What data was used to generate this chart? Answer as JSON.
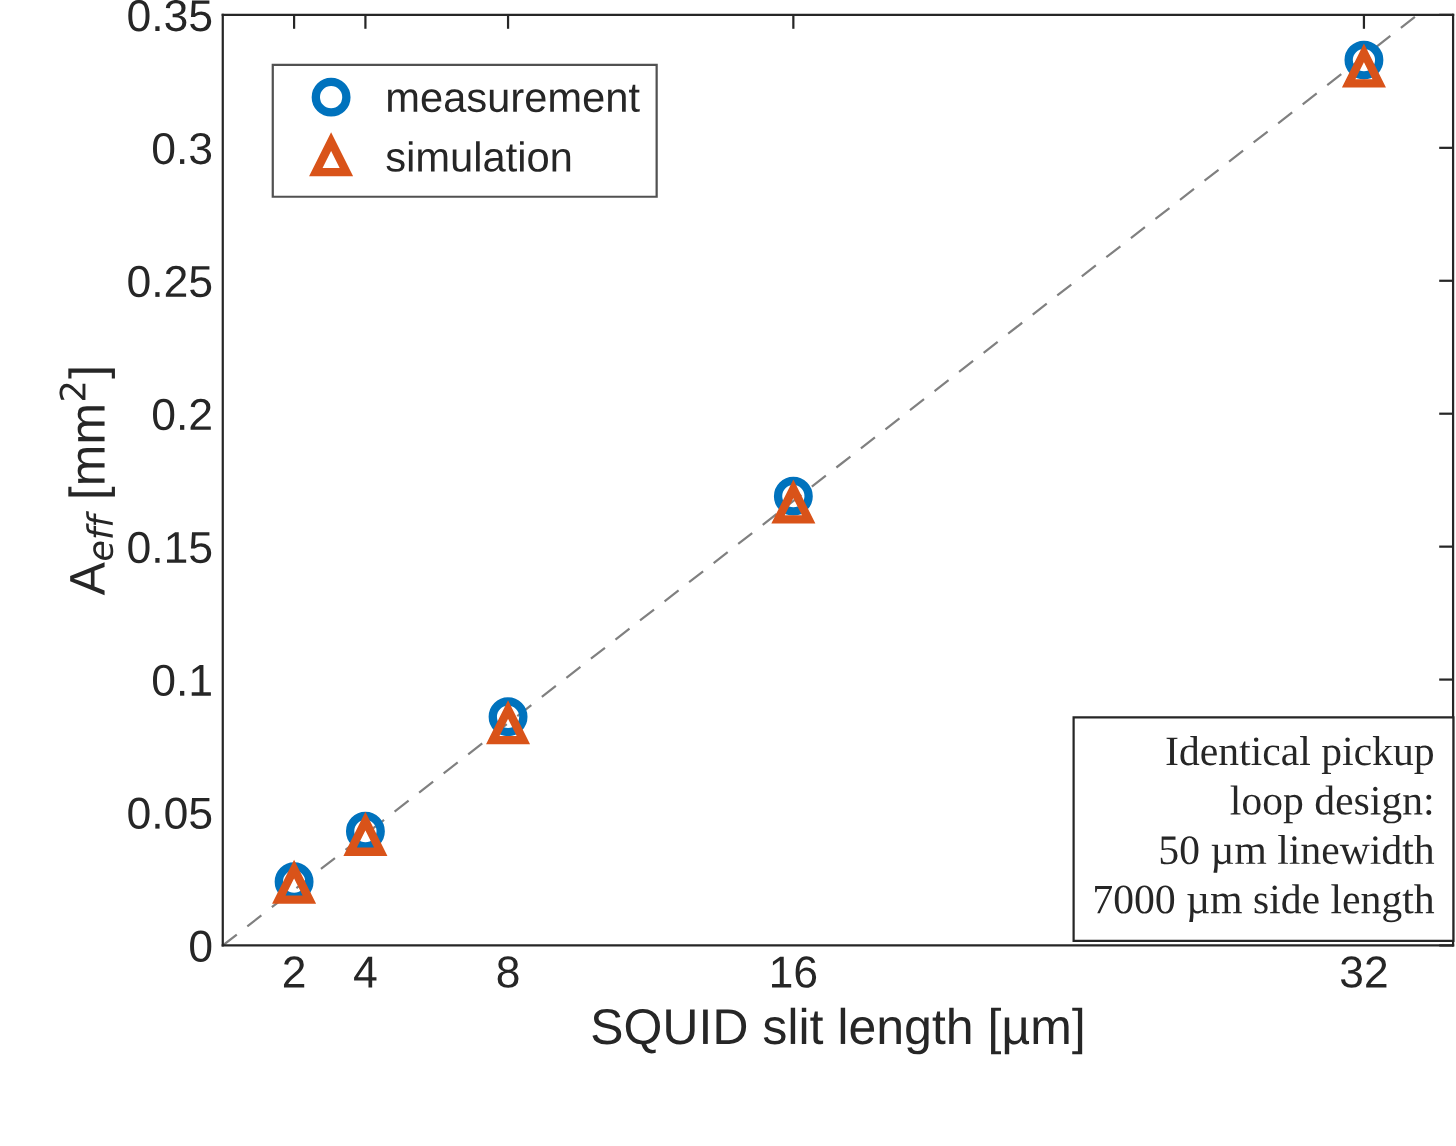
{
  "chart_data": {
    "type": "scatter",
    "xlabel": "SQUID slit length [µm]",
    "ylabel": "A$_{eff}$ [mm$^{2}$]",
    "xlim": [
      0,
      34.5
    ],
    "xticks": [
      2,
      4,
      8,
      16,
      32
    ],
    "ylim": [
      0,
      0.35
    ],
    "yticks": [
      0,
      0.05,
      0.1,
      0.15,
      0.2,
      0.25,
      0.3,
      0.35
    ],
    "x": [
      2,
      4,
      8,
      16,
      32
    ],
    "legend": "top left",
    "grid": false,
    "series": [
      {
        "type": "line",
        "x": [
          0,
          33.5
        ],
        "values": [
          0,
          0.35
        ],
        "color": "#808080",
        "line_style": "dashed",
        "marker": "none"
      },
      {
        "name": "measurement",
        "color": "#0072bd",
        "marker": "circle",
        "values": [
          0.024,
          0.043,
          0.086,
          0.169,
          0.333
        ]
      },
      {
        "name": "simulation",
        "color": "#d95319",
        "marker": "triangle",
        "values": [
          0.023,
          0.041,
          0.083,
          0.166,
          0.33
        ]
      }
    ],
    "annotations": [
      "Identical pickup\nloop design:\n50 µm linewidth\n7000 µm side length"
    ]
  }
}
